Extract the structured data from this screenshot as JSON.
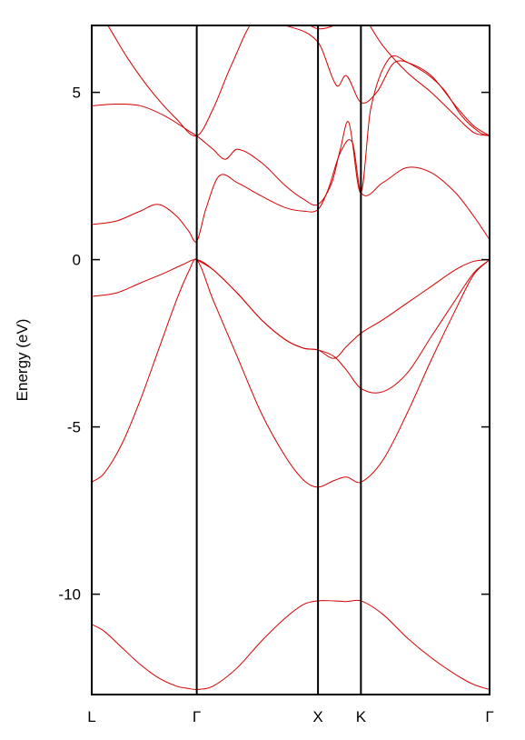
{
  "chart_data": {
    "type": "line",
    "title": "",
    "xlabel": "",
    "ylabel": "Energy (eV)",
    "ylim": [
      -13,
      7
    ],
    "yticks": [
      5,
      0,
      -5,
      -10
    ],
    "ytick_labels": [
      "5",
      "0",
      "-5",
      "-10"
    ],
    "kpoints": [
      {
        "label": "L",
        "x": 0.0
      },
      {
        "label": "Γ",
        "x": 0.866
      },
      {
        "label": "X",
        "x": 1.866
      },
      {
        "label": "K",
        "x": 2.22
      },
      {
        "label": "Γ",
        "x": 3.281
      }
    ],
    "grid": false,
    "legend": "none",
    "line_color": "#d40000",
    "bands": [
      {
        "x": [
          0,
          0.1,
          0.25,
          0.4,
          0.55,
          0.7,
          0.8,
          0.866,
          1.0,
          1.2,
          1.4,
          1.6,
          1.75,
          1.866,
          2.0,
          2.1,
          2.22,
          2.4,
          2.6,
          2.8,
          3.0,
          3.15,
          3.281
        ],
        "y": [
          -10.9,
          -11.1,
          -11.6,
          -12.1,
          -12.5,
          -12.75,
          -12.82,
          -12.85,
          -12.75,
          -12.2,
          -11.4,
          -10.7,
          -10.3,
          -10.2,
          -10.2,
          -10.22,
          -10.2,
          -10.6,
          -11.3,
          -11.9,
          -12.4,
          -12.7,
          -12.85
        ]
      },
      {
        "x": [
          0,
          0.1,
          0.25,
          0.4,
          0.55,
          0.7,
          0.8,
          0.866,
          1.0,
          1.2,
          1.4,
          1.6,
          1.75,
          1.866,
          2.0,
          2.1,
          2.22,
          2.4,
          2.6,
          2.8,
          3.0,
          3.15,
          3.281
        ],
        "y": [
          -6.65,
          -6.4,
          -5.5,
          -4.2,
          -2.7,
          -1.2,
          -0.35,
          0.0,
          -1.2,
          -2.9,
          -4.6,
          -5.9,
          -6.6,
          -6.8,
          -6.6,
          -6.5,
          -6.65,
          -6.0,
          -4.6,
          -3.0,
          -1.5,
          -0.45,
          0.0
        ]
      },
      {
        "x": [
          0,
          0.2,
          0.4,
          0.6,
          0.75,
          0.866,
          1.0,
          1.2,
          1.4,
          1.6,
          1.75,
          1.866,
          2.0,
          2.1,
          2.22,
          2.4,
          2.6,
          2.8,
          3.0,
          3.15,
          3.281
        ],
        "y": [
          -1.1,
          -1.0,
          -0.7,
          -0.4,
          -0.15,
          0.0,
          -0.3,
          -1.0,
          -1.8,
          -2.4,
          -2.65,
          -2.7,
          -2.9,
          -3.3,
          -3.85,
          -3.95,
          -3.4,
          -2.3,
          -1.2,
          -0.4,
          0.0
        ]
      },
      {
        "x": [
          0.866,
          1.0,
          1.2,
          1.4,
          1.6,
          1.75,
          1.866,
          2.0,
          2.1,
          2.22,
          2.4,
          2.6,
          2.8,
          3.0,
          3.15,
          3.281
        ],
        "y": [
          0.0,
          -0.3,
          -1.0,
          -1.8,
          -2.4,
          -2.65,
          -2.7,
          -2.95,
          -2.6,
          -2.2,
          -1.8,
          -1.3,
          -0.8,
          -0.3,
          -0.05,
          0.0
        ]
      },
      {
        "x": [
          0,
          0.2,
          0.4,
          0.55,
          0.7,
          0.8,
          0.866,
          0.94,
          1.05,
          1.2,
          1.4,
          1.6,
          1.75,
          1.866,
          1.95,
          2.05,
          2.15,
          2.22,
          2.4,
          2.6,
          2.8,
          3.0,
          3.15,
          3.281
        ],
        "y": [
          1.05,
          1.15,
          1.45,
          1.65,
          1.3,
          0.85,
          0.55,
          1.5,
          2.5,
          2.3,
          1.9,
          1.55,
          1.45,
          1.5,
          2.1,
          3.2,
          3.5,
          2.0,
          2.3,
          2.75,
          2.6,
          2.0,
          1.3,
          0.6
        ]
      },
      {
        "x": [
          0,
          0.2,
          0.4,
          0.6,
          0.8,
          0.866,
          1.0,
          1.1,
          1.2,
          1.4,
          1.6,
          1.75,
          1.866,
          1.98,
          2.05,
          2.12,
          2.22,
          2.3,
          2.45,
          2.6,
          2.8,
          3.0,
          3.15,
          3.281
        ],
        "y": [
          4.6,
          4.65,
          4.6,
          4.3,
          3.85,
          3.7,
          3.3,
          3.0,
          3.3,
          2.9,
          2.2,
          1.8,
          1.65,
          2.3,
          3.3,
          4.1,
          2.0,
          4.5,
          6.0,
          5.9,
          5.5,
          4.6,
          4.0,
          3.7
        ]
      },
      {
        "x": [
          0,
          0.15,
          0.3,
          0.5,
          0.7,
          0.866,
          1.0,
          1.15,
          1.35,
          1.6,
          1.866,
          2.02,
          2.1,
          2.22,
          2.35,
          2.5,
          2.7,
          2.9,
          3.05,
          3.2,
          3.281
        ],
        "y": [
          7.8,
          6.9,
          6.0,
          5.0,
          4.2,
          3.7,
          4.5,
          5.8,
          7.2,
          7.0,
          6.5,
          5.2,
          5.5,
          4.7,
          5.0,
          5.9,
          5.7,
          5.1,
          4.3,
          3.8,
          3.7
        ]
      },
      {
        "x": [
          1.35,
          1.55,
          1.75,
          1.866,
          2.0,
          2.08,
          2.15,
          2.22,
          2.4,
          2.6,
          2.8,
          3.0,
          3.15,
          3.281
        ],
        "y": [
          7.8,
          7.3,
          7.1,
          6.9,
          7.0,
          7.2,
          7.6,
          7.4,
          6.4,
          5.6,
          5.0,
          4.3,
          3.8,
          3.7
        ]
      }
    ]
  }
}
